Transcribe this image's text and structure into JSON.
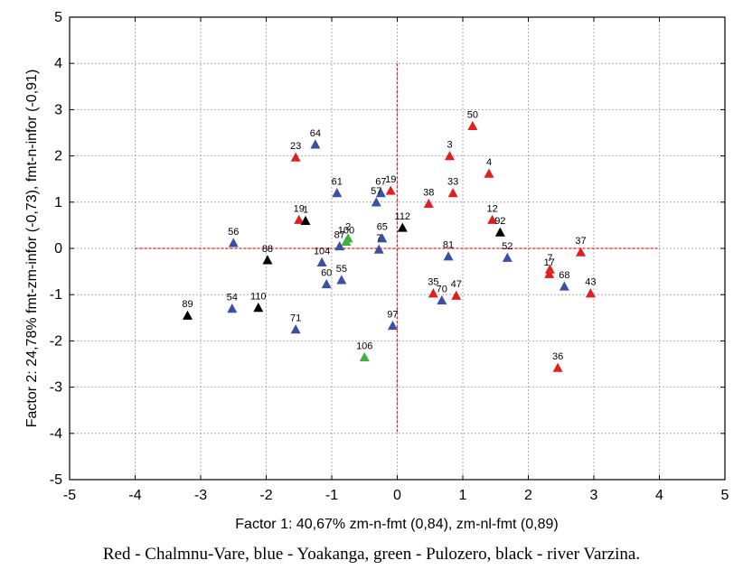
{
  "chart_data": {
    "type": "scatter",
    "title": "",
    "xlabel": "Factor 1: 40,67% zm-n-fmt (0,84), zm-nl-fmt (0,89)",
    "ylabel": "Factor 2: 24,78% fmt-zm-infor (-0,73), fmt-n-infor (-0,91)",
    "xlim": [
      -5,
      5
    ],
    "ylim": [
      -5,
      5
    ],
    "xticks": [
      "-5",
      "-4",
      "-3",
      "-2",
      "-1",
      "0",
      "1",
      "2",
      "3",
      "4",
      "5"
    ],
    "yticks": [
      "5",
      "4",
      "3",
      "2",
      "1",
      "0",
      "-1",
      "-2",
      "-3",
      "-4",
      "-5"
    ],
    "grid": true,
    "colors": {
      "red": "#e02020",
      "blue": "#3a4fa8",
      "green": "#40b040",
      "black": "#000000",
      "refline": "#e02020"
    },
    "points": [
      {
        "label": "50",
        "x": 1.15,
        "y": 2.65,
        "color": "red"
      },
      {
        "label": "3",
        "x": 0.8,
        "y": 2.0,
        "color": "red"
      },
      {
        "label": "4",
        "x": 1.4,
        "y": 1.62,
        "color": "red"
      },
      {
        "label": "23",
        "x": -1.55,
        "y": 1.97,
        "color": "red"
      },
      {
        "label": "19",
        "x": -0.1,
        "y": 1.25,
        "color": "red"
      },
      {
        "label": "33",
        "x": 0.85,
        "y": 1.2,
        "color": "red"
      },
      {
        "label": "38",
        "x": 0.48,
        "y": 0.97,
        "color": "red"
      },
      {
        "label": "12",
        "x": 1.45,
        "y": 0.62,
        "color": "red"
      },
      {
        "label": "19",
        "x": -1.5,
        "y": 0.62,
        "color": "red"
      },
      {
        "label": "37",
        "x": 2.8,
        "y": -0.08,
        "color": "red"
      },
      {
        "label": "17",
        "x": 2.32,
        "y": -0.55,
        "color": "red"
      },
      {
        "label": "35",
        "x": 0.55,
        "y": -0.97,
        "color": "red"
      },
      {
        "label": "47",
        "x": 0.9,
        "y": -1.02,
        "color": "red"
      },
      {
        "label": "43",
        "x": 2.95,
        "y": -0.97,
        "color": "red"
      },
      {
        "label": "36",
        "x": 2.45,
        "y": -2.58,
        "color": "red"
      },
      {
        "label": "7",
        "x": 2.33,
        "y": -0.45,
        "color": "red"
      },
      {
        "label": "64",
        "x": -1.25,
        "y": 2.25,
        "color": "blue"
      },
      {
        "label": "61",
        "x": -0.92,
        "y": 1.2,
        "color": "blue"
      },
      {
        "label": "67",
        "x": -0.25,
        "y": 1.2,
        "color": "blue"
      },
      {
        "label": "57",
        "x": -0.32,
        "y": 1.0,
        "color": "blue"
      },
      {
        "label": "56",
        "x": -2.5,
        "y": 0.12,
        "color": "blue"
      },
      {
        "label": "65",
        "x": -0.23,
        "y": 0.22,
        "color": "blue"
      },
      {
        "label": "7",
        "x": -0.28,
        "y": -0.02,
        "color": "blue"
      },
      {
        "label": "87",
        "x": -0.88,
        "y": 0.05,
        "color": "blue"
      },
      {
        "label": "104",
        "x": -1.15,
        "y": -0.3,
        "color": "blue"
      },
      {
        "label": "60",
        "x": -1.08,
        "y": -0.77,
        "color": "blue"
      },
      {
        "label": "55",
        "x": -0.85,
        "y": -0.68,
        "color": "blue"
      },
      {
        "label": "81",
        "x": 0.78,
        "y": -0.17,
        "color": "blue"
      },
      {
        "label": "52",
        "x": 1.68,
        "y": -0.2,
        "color": "blue"
      },
      {
        "label": "68",
        "x": 2.55,
        "y": -0.82,
        "color": "blue"
      },
      {
        "label": "70",
        "x": 0.68,
        "y": -1.12,
        "color": "blue"
      },
      {
        "label": "54",
        "x": -2.52,
        "y": -1.3,
        "color": "blue"
      },
      {
        "label": "71",
        "x": -1.55,
        "y": -1.75,
        "color": "blue"
      },
      {
        "label": "97",
        "x": -0.07,
        "y": -1.67,
        "color": "blue"
      },
      {
        "label": "100",
        "x": -0.78,
        "y": 0.15,
        "color": "green"
      },
      {
        "label": "2",
        "x": -0.75,
        "y": 0.22,
        "color": "green"
      },
      {
        "label": "106",
        "x": -0.5,
        "y": -2.35,
        "color": "green"
      },
      {
        "label": "1",
        "x": -1.4,
        "y": 0.6,
        "color": "black"
      },
      {
        "label": "112",
        "x": 0.08,
        "y": 0.45,
        "color": "black"
      },
      {
        "label": "92",
        "x": 1.57,
        "y": 0.35,
        "color": "black"
      },
      {
        "label": "88",
        "x": -1.98,
        "y": -0.25,
        "color": "black"
      },
      {
        "label": "110",
        "x": -2.12,
        "y": -1.28,
        "color": "black"
      },
      {
        "label": "89",
        "x": -3.2,
        "y": -1.45,
        "color": "black"
      }
    ]
  },
  "caption": "Red - Chalmnu-Vare, blue - Yoakanga, green - Pulozero, black - river Varzina."
}
